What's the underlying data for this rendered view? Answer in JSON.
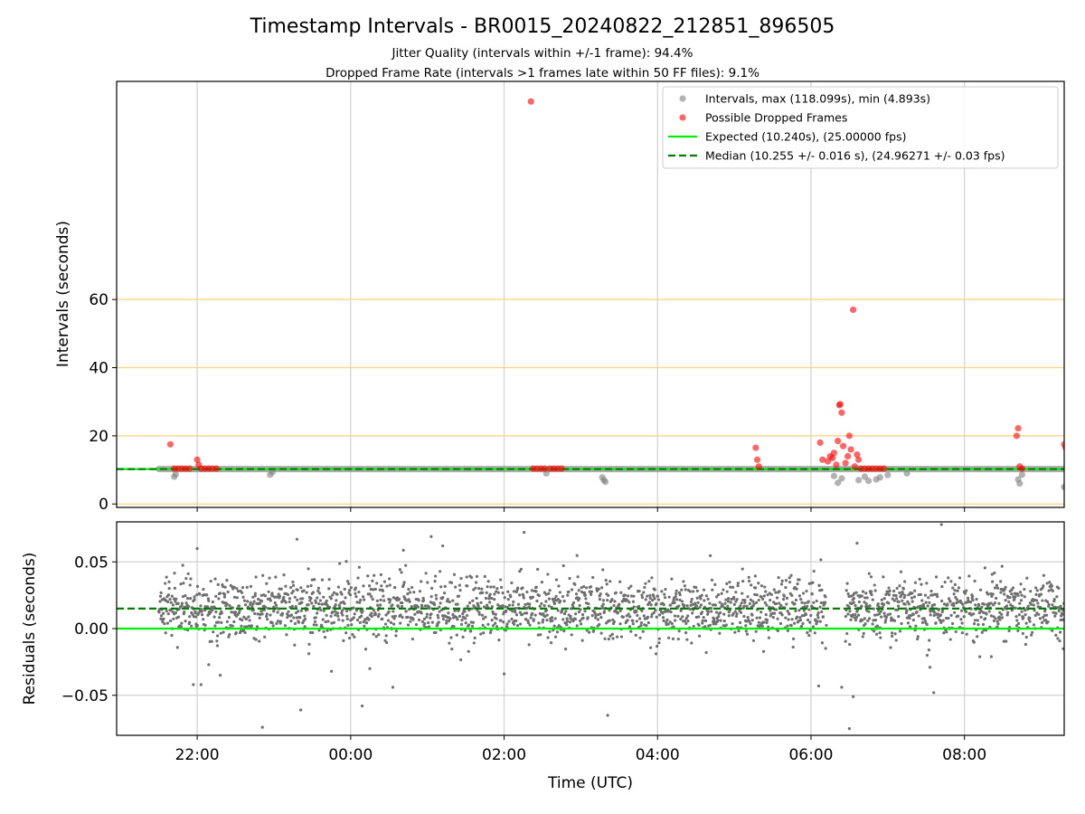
{
  "chart_data": [
    {
      "type": "scatter",
      "title": "Timestamp Intervals - BR0015_20240822_212851_896505",
      "subtitle_lines": [
        "Jitter Quality (intervals within +/-1 frame): 94.4%",
        "Dropped Frame Rate (intervals >1 frames late within 50 FF files): 9.1%"
      ],
      "xlabel": "",
      "ylabel": "Intervals (seconds)",
      "xlim_hours": [
        -3.05,
        9.3
      ],
      "ylim": [
        -1,
        124
      ],
      "yticks": [
        0,
        20,
        40,
        60
      ],
      "grid_x": true,
      "reference_lines_y": [
        0,
        20,
        40,
        60
      ],
      "legend_position": "upper right",
      "legend": [
        {
          "label": "Intervals, max (118.099s), min (4.893s)",
          "style": "gray-dot"
        },
        {
          "label": "Possible Dropped Frames",
          "style": "red-dot"
        },
        {
          "label": "Expected (10.240s), (25.00000 fps)",
          "style": "green-line"
        },
        {
          "label": "Median (10.255 +/- 0.016 s), (24.96271 +/- 0.03 fps)",
          "style": "darkgreen-dash"
        }
      ],
      "expected_value": 10.24,
      "median_value": 10.255,
      "normal_intervals_band": {
        "x_start": -2.5,
        "x_end": 9.3,
        "value": 10.26
      },
      "gray_outliers": [
        [
          0.7,
          8.0
        ],
        [
          0.72,
          8.7
        ],
        [
          1.95,
          8.6
        ],
        [
          1.98,
          9.3
        ],
        [
          5.55,
          9.0
        ],
        [
          6.28,
          7.8
        ],
        [
          6.3,
          7.0
        ],
        [
          6.32,
          6.5
        ],
        [
          9.3,
          8.2
        ],
        [
          9.35,
          6.2
        ],
        [
          9.4,
          7.5
        ],
        [
          9.62,
          7.0
        ],
        [
          9.7,
          8.0
        ],
        [
          9.75,
          6.8
        ],
        [
          9.85,
          7.2
        ],
        [
          9.9,
          7.8
        ],
        [
          10.0,
          8.5
        ],
        [
          10.25,
          9.0
        ],
        [
          11.7,
          7.2
        ],
        [
          11.72,
          6.0
        ],
        [
          11.75,
          8.6
        ],
        [
          12.3,
          5.0
        ],
        [
          12.32,
          4.9
        ]
      ],
      "dropped_frames": [
        [
          0.65,
          17.5
        ],
        [
          0.7,
          10.4
        ],
        [
          0.75,
          10.4
        ],
        [
          0.8,
          10.4
        ],
        [
          0.85,
          10.4
        ],
        [
          0.9,
          10.4
        ],
        [
          1.0,
          13.0
        ],
        [
          1.02,
          11.5
        ],
        [
          1.05,
          10.4
        ],
        [
          1.1,
          10.4
        ],
        [
          1.15,
          10.4
        ],
        [
          1.2,
          10.4
        ],
        [
          1.25,
          10.4
        ],
        [
          5.35,
          118.1
        ],
        [
          5.38,
          10.4
        ],
        [
          5.43,
          10.4
        ],
        [
          5.48,
          10.4
        ],
        [
          5.53,
          10.4
        ],
        [
          5.6,
          10.4
        ],
        [
          5.65,
          10.4
        ],
        [
          5.7,
          10.4
        ],
        [
          5.75,
          10.4
        ],
        [
          8.28,
          16.5
        ],
        [
          8.3,
          13.0
        ],
        [
          8.32,
          11.0
        ],
        [
          9.12,
          18.0
        ],
        [
          9.15,
          13.0
        ],
        [
          9.22,
          12.5
        ],
        [
          9.25,
          14.0
        ],
        [
          9.28,
          13.5
        ],
        [
          9.3,
          15.0
        ],
        [
          9.33,
          11.5
        ],
        [
          9.35,
          18.5
        ],
        [
          9.37,
          29.0
        ],
        [
          9.38,
          29.3
        ],
        [
          9.4,
          26.8
        ],
        [
          9.42,
          17.0
        ],
        [
          9.45,
          12.0
        ],
        [
          9.48,
          14.0
        ],
        [
          9.5,
          20.0
        ],
        [
          9.52,
          16.0
        ],
        [
          9.55,
          57.0
        ],
        [
          9.57,
          11.0
        ],
        [
          9.6,
          14.5
        ],
        [
          9.62,
          13.0
        ],
        [
          9.65,
          10.4
        ],
        [
          9.7,
          10.4
        ],
        [
          9.75,
          10.4
        ],
        [
          9.8,
          10.4
        ],
        [
          9.85,
          10.4
        ],
        [
          9.9,
          10.4
        ],
        [
          9.95,
          10.4
        ],
        [
          11.68,
          20.0
        ],
        [
          11.7,
          22.2
        ],
        [
          11.72,
          11.0
        ],
        [
          11.75,
          10.4
        ],
        [
          12.3,
          17.5
        ],
        [
          12.32,
          16.5
        ],
        [
          12.34,
          14.8
        ],
        [
          12.36,
          12.0
        ],
        [
          12.38,
          11.0
        ],
        [
          12.4,
          10.4
        ],
        [
          12.45,
          10.4
        ],
        [
          12.5,
          10.4
        ],
        [
          12.55,
          10.4
        ]
      ]
    },
    {
      "type": "scatter",
      "title": "",
      "xlabel": "Time (UTC)",
      "ylabel": "Residuals (seconds)",
      "xlim_hours": [
        -3.05,
        9.3
      ],
      "ylim": [
        -0.08,
        0.08
      ],
      "yticks": [
        0.05,
        0.0,
        -0.05
      ],
      "ytick_labels": [
        "0.05",
        "0.00",
        "−0.05"
      ],
      "xtick_hours": [
        -2,
        0,
        2,
        4,
        6,
        8
      ],
      "xtick_labels": [
        "22:00",
        "00:00",
        "02:00",
        "04:00",
        "06:00",
        "08:00"
      ],
      "grid": true,
      "expected_residual": 0.0,
      "median_residual": 0.015,
      "residual_series": {
        "x_start": -2.5,
        "x_end": 9.3,
        "gap_hours": [
          6.2,
          6.45
        ],
        "center": 0.015,
        "spread": 0.011
      },
      "residual_outliers": [
        [
          -2.05,
          -0.042
        ],
        [
          -1.95,
          -0.042
        ],
        [
          -1.85,
          -0.027
        ],
        [
          -1.7,
          -0.035
        ],
        [
          -1.15,
          -0.074
        ],
        [
          -0.65,
          -0.061
        ],
        [
          -0.25,
          -0.032
        ],
        [
          0.15,
          -0.058
        ],
        [
          0.25,
          -0.03
        ],
        [
          0.55,
          -0.044
        ],
        [
          1.05,
          0.069
        ],
        [
          2.0,
          -0.034
        ],
        [
          3.35,
          -0.065
        ],
        [
          6.1,
          -0.043
        ],
        [
          6.4,
          -0.044
        ],
        [
          6.5,
          -0.075
        ],
        [
          6.55,
          -0.051
        ],
        [
          6.6,
          0.064
        ],
        [
          7.55,
          -0.029
        ],
        [
          7.6,
          -0.048
        ],
        [
          7.7,
          0.078
        ],
        [
          8.35,
          -0.021
        ],
        [
          -2.0,
          0.06
        ],
        [
          -0.7,
          0.067
        ],
        [
          1.2,
          0.062
        ]
      ]
    }
  ],
  "colors": {
    "intervals": "#808080",
    "dropped": "#ff0000",
    "expected": "#00ee00",
    "median": "#007f00",
    "reference": "#ffd27f",
    "grid": "#d0d0d0"
  }
}
